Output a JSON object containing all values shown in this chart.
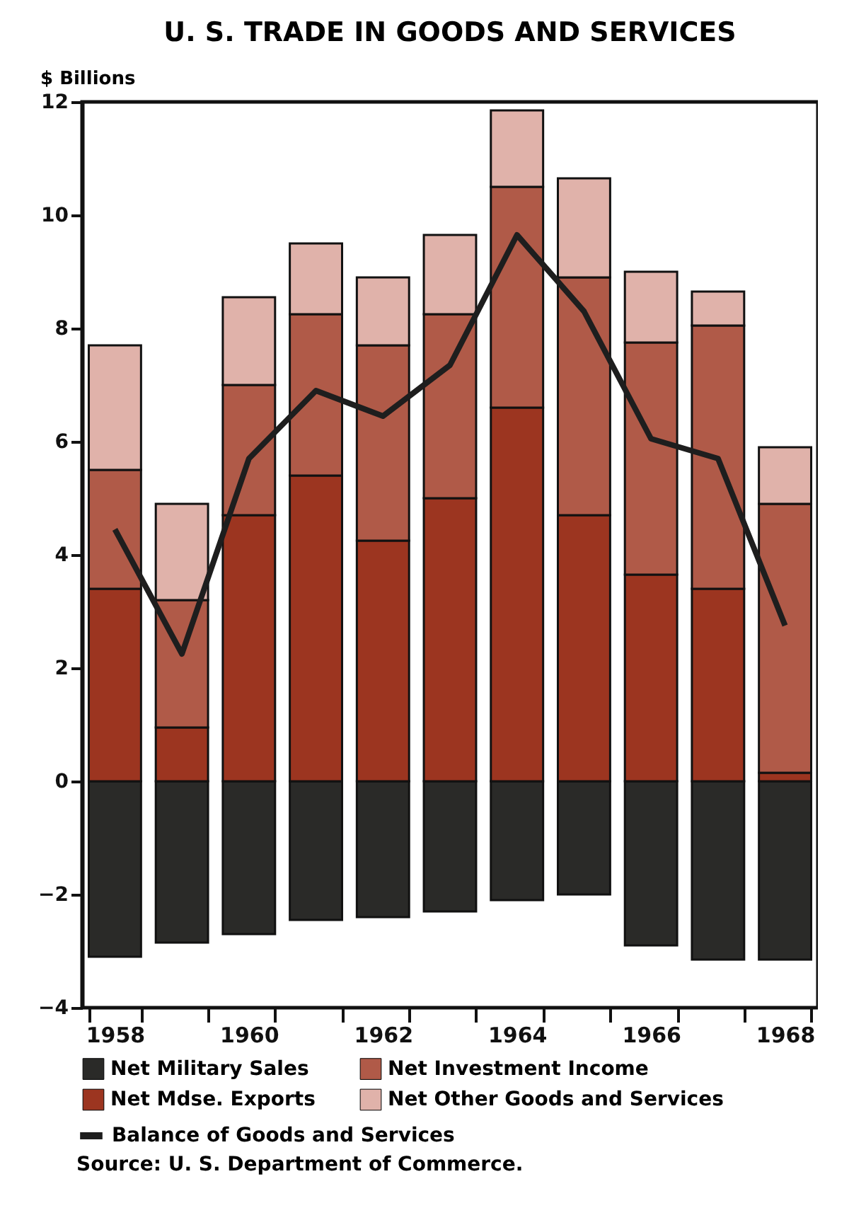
{
  "chart_data": {
    "type": "bar",
    "title": "U. S. TRADE IN GOODS AND SERVICES",
    "ylabel": "$ Billions",
    "categories": [
      "1958",
      null,
      "1960",
      null,
      "1962",
      null,
      "1964",
      null,
      "1966",
      null,
      "1968"
    ],
    "stacked": true,
    "series": [
      {
        "name": "Net Military Sales",
        "color": "#2a2a28",
        "values": [
          -3.1,
          -2.85,
          -2.7,
          -2.45,
          -2.4,
          -2.3,
          -2.1,
          -2.0,
          -2.9,
          -3.15,
          -3.15
        ]
      },
      {
        "name": "Net Mdse. Exports",
        "color": "#9c3520",
        "values": [
          3.4,
          0.95,
          4.7,
          5.4,
          4.25,
          5.0,
          6.6,
          4.7,
          3.65,
          3.4,
          0.15
        ]
      },
      {
        "name": "Net Investment Income",
        "color": "#b05a48",
        "values": [
          2.1,
          2.25,
          2.3,
          2.85,
          3.45,
          3.25,
          3.9,
          4.2,
          4.1,
          4.65,
          4.75
        ]
      },
      {
        "name": "Net Other Goods and Services",
        "color": "#e0b2aa",
        "values": [
          2.2,
          1.7,
          1.55,
          1.25,
          1.2,
          1.4,
          1.35,
          1.75,
          1.25,
          0.6,
          1.0
        ]
      },
      {
        "name": "Balance of Goods and Services",
        "type": "line",
        "color": "#1e1e1e",
        "values": [
          4.45,
          2.25,
          5.7,
          6.9,
          6.45,
          7.35,
          9.65,
          8.3,
          6.05,
          5.7,
          2.75
        ]
      }
    ],
    "ylim": [
      -4,
      12
    ],
    "yticks": [
      -4,
      -2,
      0,
      2,
      4,
      6,
      8,
      10,
      12
    ],
    "grid": false,
    "legend": "bottom",
    "marker": "none",
    "line_style": "solid",
    "annotations": [
      "Source:  U. S. Department of Commerce."
    ]
  }
}
